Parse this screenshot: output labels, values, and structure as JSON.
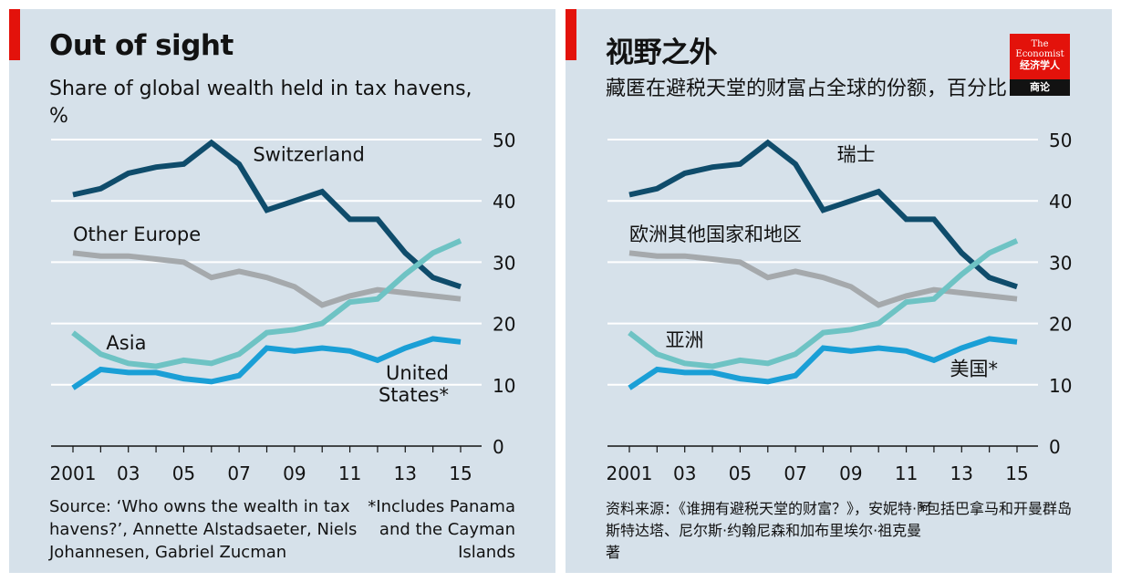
{
  "panels": [
    {
      "lang": "en",
      "title": "Out of sight",
      "subtitle": "Share of global wealth held in tax havens, %",
      "footnote_left": "Source: ‘Who owns the wealth in tax havens?’, Annette Alstadsaeter, Niels Johannesen, Gabriel Zucman",
      "footnote_right": "*Includes Panama and the Cayman Islands",
      "series_labels": {
        "switzerland": [
          "Switzerland"
        ],
        "other_europe": [
          "Other Europe"
        ],
        "asia": [
          "Asia"
        ],
        "united_states": [
          "United",
          "States*"
        ]
      }
    },
    {
      "lang": "zh",
      "title": "视野之外",
      "subtitle": "藏匿在避税天堂的财富占全球的份额，百分比",
      "footnote_left": "资料来源：《谁拥有避税天堂的财富？》，安妮特·阿斯特达塔、尼尔斯·约翰尼森和加布里埃尔·祖克曼著",
      "footnote_right": "*包括巴拿马和开曼群岛",
      "logo": {
        "line1": "The",
        "line2": "Economist",
        "line3": "经济学人",
        "line4": "商论"
      },
      "series_labels": {
        "switzerland": [
          "瑞士"
        ],
        "other_europe": [
          "欧洲其他国家和地区"
        ],
        "asia": [
          "亚洲"
        ],
        "united_states": [
          "美国*"
        ]
      }
    }
  ],
  "chart_data": {
    "type": "line",
    "x": [
      2001,
      2002,
      2003,
      2004,
      2005,
      2006,
      2007,
      2008,
      2009,
      2010,
      2011,
      2012,
      2013,
      2014,
      2015
    ],
    "x_tick_labels": [
      "2001",
      "03",
      "05",
      "07",
      "09",
      "11",
      "13",
      "15"
    ],
    "x_tick_values": [
      2001,
      2003,
      2005,
      2007,
      2009,
      2011,
      2013,
      2015
    ],
    "ylim": [
      0,
      50
    ],
    "y_ticks": [
      0,
      10,
      20,
      30,
      40,
      50
    ],
    "y_axis_side": "right",
    "grid": true,
    "series": [
      {
        "key": "switzerland",
        "color": "#0f4c6b",
        "values": [
          41,
          42,
          44.5,
          45.5,
          46,
          49.5,
          46,
          38.5,
          40,
          41.5,
          37,
          37,
          31.5,
          27.5,
          26
        ]
      },
      {
        "key": "other_europe",
        "color": "#a5a9ac",
        "values": [
          31.5,
          31,
          31,
          30.5,
          30,
          27.5,
          28.5,
          27.5,
          26,
          23,
          24.5,
          25.5,
          25,
          24.5,
          24
        ]
      },
      {
        "key": "asia",
        "color": "#6ec3c4",
        "values": [
          18.5,
          15,
          13.5,
          13,
          14,
          13.5,
          15,
          18.5,
          19,
          20,
          23.5,
          24,
          28,
          31.5,
          33.5
        ]
      },
      {
        "key": "united_states",
        "color": "#1a9fd6",
        "values": [
          9.5,
          12.5,
          12,
          12,
          11,
          10.5,
          11.5,
          16,
          15.5,
          16,
          15.5,
          14,
          16,
          17.5,
          17
        ]
      }
    ]
  }
}
